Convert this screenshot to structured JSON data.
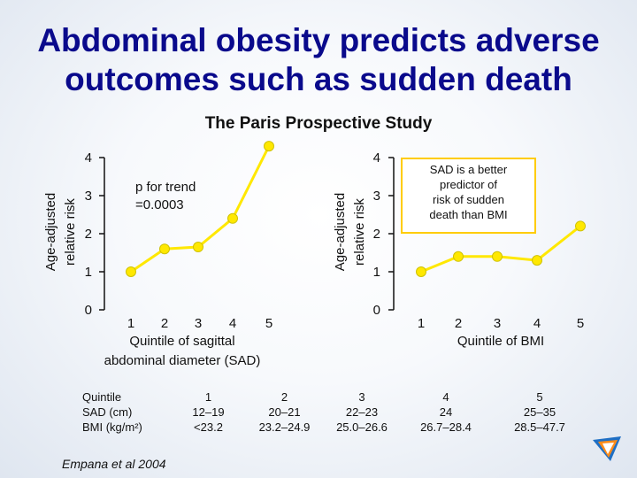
{
  "title_line1": "Abdominal obesity predicts adverse",
  "title_line2": "outcomes such as sudden death",
  "subtitle": "The Paris Prospective Study",
  "chart_data": [
    {
      "type": "line",
      "xlabel": "Quintile of sagittal abdominal diameter (SAD)",
      "xlabel_lines": [
        "Quintile of sagittal",
        "abdominal diameter (SAD)"
      ],
      "ylabel_lines": [
        "Age-adjusted",
        "relative risk"
      ],
      "x": [
        1,
        2,
        3,
        4,
        5
      ],
      "y": [
        1.0,
        1.6,
        1.65,
        2.4,
        4.3
      ],
      "yticks": [
        0,
        1,
        2,
        3,
        4
      ],
      "ylim": [
        0,
        4
      ],
      "annotation": "p for trend =0.0003",
      "color": "#ffe800"
    },
    {
      "type": "line",
      "xlabel": "Quintile of BMI",
      "ylabel_lines": [
        "Age-adjusted",
        "relative risk"
      ],
      "x": [
        1,
        2,
        3,
        4,
        5
      ],
      "y": [
        1.0,
        1.4,
        1.4,
        1.3,
        2.2
      ],
      "yticks": [
        0,
        1,
        2,
        3,
        4
      ],
      "ylim": [
        0,
        4
      ],
      "annotation": "SAD is a better predictor of risk of sudden death than BMI",
      "color": "#ffe800"
    }
  ],
  "table": {
    "header": [
      "Quintile",
      "1",
      "2",
      "3",
      "4",
      "5"
    ],
    "rows": [
      [
        "SAD (cm)",
        "12–19",
        "20–21",
        "22–23",
        "24",
        "25–35"
      ],
      [
        "BMI (kg/m²)",
        "<23.2",
        "23.2–24.9",
        "25.0–26.6",
        "26.7–28.4",
        "28.5–47.7"
      ]
    ]
  },
  "ptrend_line1": "p for trend",
  "ptrend_line2": "=0.0003",
  "note_lines": [
    "SAD is a better",
    "predictor of",
    "risk of sudden",
    "death than BMI"
  ],
  "source": "Empana et al 2004",
  "colors": {
    "title": "#0a0a8c",
    "line": "#ffe800",
    "axis": "#111111",
    "note_border": "#ffcc00"
  }
}
